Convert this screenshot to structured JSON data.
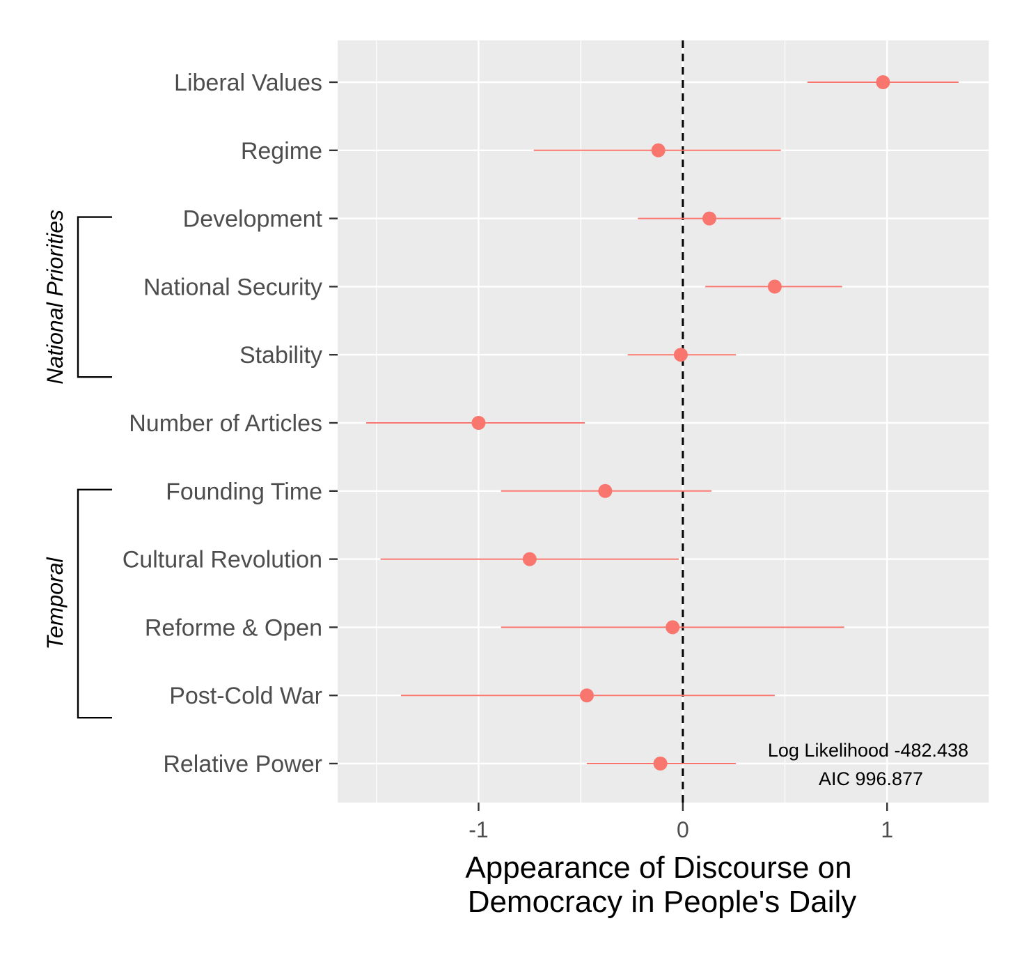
{
  "chart_data": {
    "type": "forest",
    "xlabel_lines": [
      "Appearance of Discourse on",
      "Democracy in People's Daily"
    ],
    "x_ticks": [
      {
        "value": -1,
        "label": "-1"
      },
      {
        "value": 0,
        "label": "0"
      },
      {
        "value": 1,
        "label": "1"
      }
    ],
    "xlim": [
      -1.69,
      1.5
    ],
    "reference_line": 0,
    "point_color": "#F8766D",
    "panel_background": "#EBEBEB",
    "grid": true,
    "rows": [
      {
        "label": "Liberal Values",
        "estimate": 0.98,
        "lower": 0.61,
        "upper": 1.35
      },
      {
        "label": "Regime",
        "estimate": -0.12,
        "lower": -0.73,
        "upper": 0.48
      },
      {
        "label": "Development",
        "estimate": 0.13,
        "lower": -0.22,
        "upper": 0.48
      },
      {
        "label": "National Security",
        "estimate": 0.45,
        "lower": 0.11,
        "upper": 0.78
      },
      {
        "label": "Stability",
        "estimate": -0.01,
        "lower": -0.27,
        "upper": 0.26
      },
      {
        "label": "Number of Articles",
        "estimate": -1.0,
        "lower": -1.55,
        "upper": -0.48
      },
      {
        "label": "Founding Time",
        "estimate": -0.38,
        "lower": -0.89,
        "upper": 0.14
      },
      {
        "label": "Cultural Revolution",
        "estimate": -0.75,
        "lower": -1.48,
        "upper": -0.02
      },
      {
        "label": "Reforme & Open",
        "estimate": -0.05,
        "lower": -0.89,
        "upper": 0.79
      },
      {
        "label": "Post-Cold War",
        "estimate": -0.47,
        "lower": -1.38,
        "upper": 0.45
      },
      {
        "label": "Relative Power",
        "estimate": -0.11,
        "lower": -0.47,
        "upper": 0.26
      }
    ],
    "groups": [
      {
        "label": "National Priorities",
        "from": "Development",
        "to": "Stability"
      },
      {
        "label": "Temporal",
        "from": "Founding Time",
        "to": "Post-Cold War"
      }
    ],
    "annotations": [
      "Log Likelihood -482.438",
      "AIC 996.877"
    ]
  }
}
